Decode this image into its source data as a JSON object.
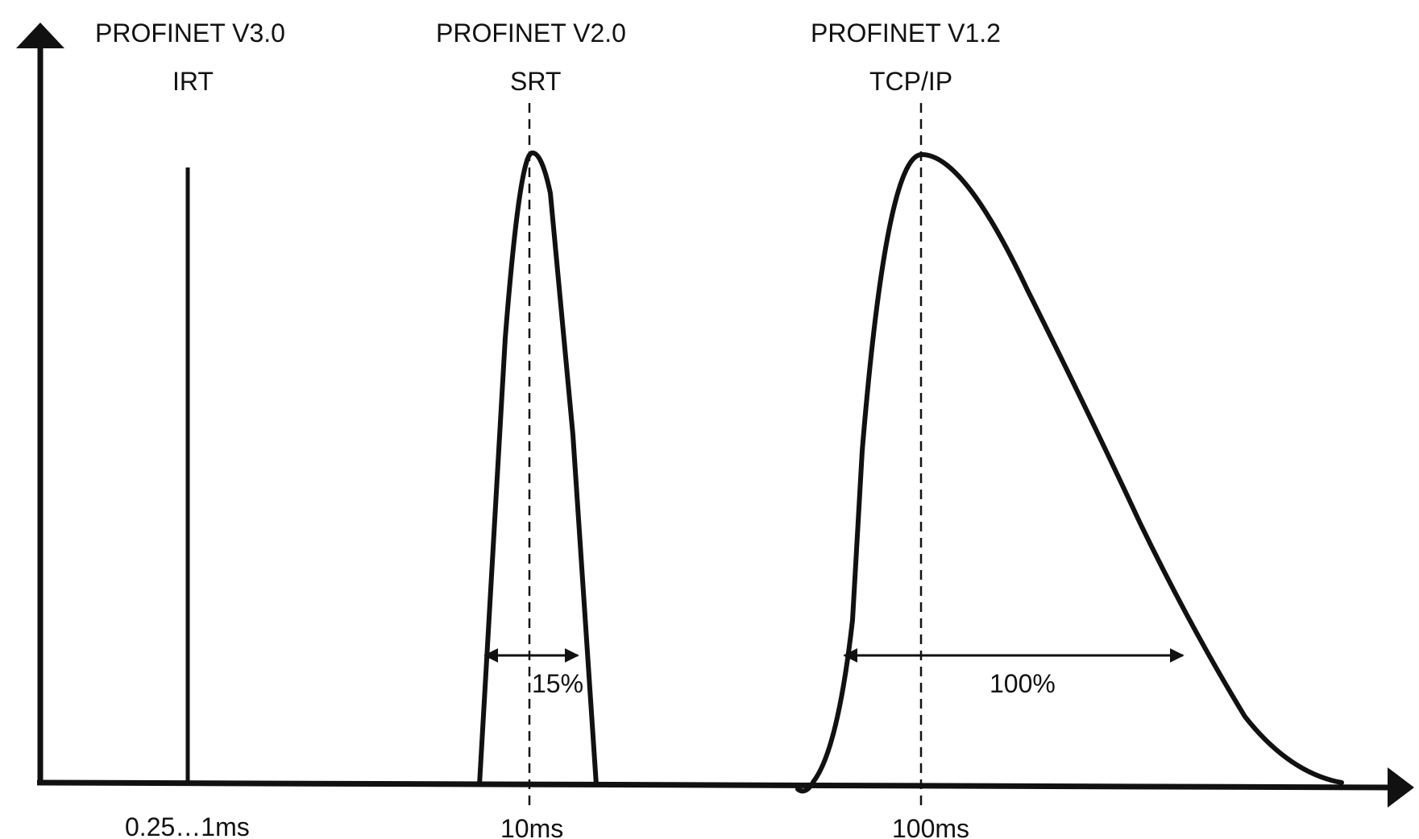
{
  "protocols": [
    {
      "version": "PROFINET V3.0",
      "name": "IRT",
      "time": "0.25…1ms"
    },
    {
      "version": "PROFINET V2.0",
      "name": "SRT",
      "time": "10ms",
      "jitter": "15%"
    },
    {
      "version": "PROFINET V1.2",
      "name": "TCP/IP",
      "time": "100ms",
      "jitter": "100%"
    }
  ],
  "colors": {
    "ink": "#111111",
    "background": "#ffffff"
  }
}
